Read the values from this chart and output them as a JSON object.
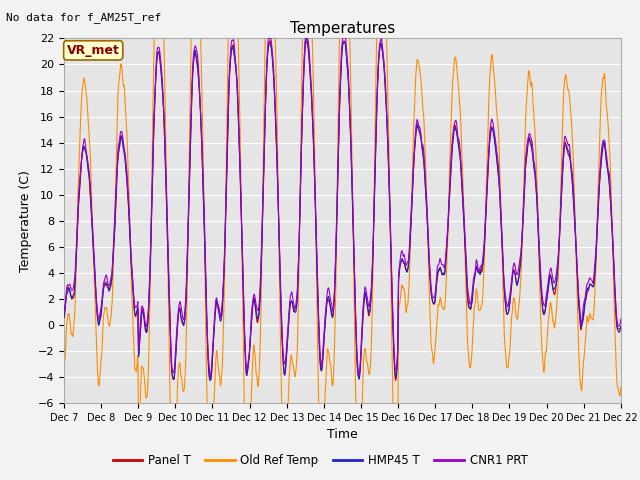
{
  "title": "Temperatures",
  "xlabel": "Time",
  "ylabel": "Temperature (C)",
  "ylim": [
    -6,
    22
  ],
  "yticks": [
    -6,
    -4,
    -2,
    0,
    2,
    4,
    6,
    8,
    10,
    12,
    14,
    16,
    18,
    20,
    22
  ],
  "note": "No data for f_AM25T_ref",
  "vr_label": "VR_met",
  "legend_labels": [
    "Panel T",
    "Old Ref Temp",
    "HMP45 T",
    "CNR1 PRT"
  ],
  "colors": [
    "#cc0000",
    "#ff8c00",
    "#2020cc",
    "#9900cc"
  ],
  "background_color": "#e5e5e5",
  "line_width": 0.8,
  "x_tick_labels": [
    "Dec 7",
    "Dec 8",
    "Dec 9",
    "Dec 10",
    "Dec 11",
    "Dec 12",
    "Dec 13",
    "Dec 14",
    "Dec 15",
    "Dec 16",
    "Dec 17",
    "Dec 18",
    "Dec 19",
    "Dec 20",
    "Dec 21",
    "Dec 22"
  ],
  "figsize": [
    6.4,
    4.8
  ],
  "dpi": 100
}
